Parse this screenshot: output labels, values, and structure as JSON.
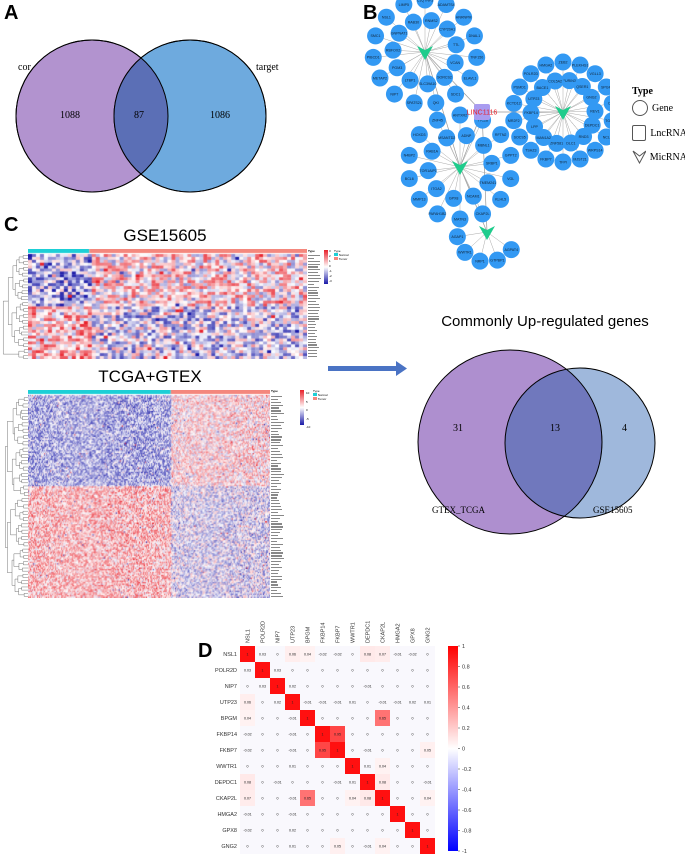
{
  "panels": {
    "a": "A",
    "b": "B",
    "c": "C",
    "d": "D"
  },
  "venn_a": {
    "left_label": "cor",
    "right_label": "target",
    "left_only": "1088",
    "overlap": "87",
    "right_only": "1086",
    "colors": {
      "left": "#b293cf",
      "right": "#6eaade",
      "overlap": "#5b6fb6"
    }
  },
  "network": {
    "lncrna": "LINC1116",
    "legend": {
      "title": "Type",
      "gene": "Gene",
      "lncrna": "LncRNA",
      "mirna": "MicRNA"
    },
    "colors": {
      "gene": "#3399f3",
      "mirna": "#1fcc8c",
      "lncrna": "#a99cf0",
      "lncrna_text": "#e8202a"
    },
    "hubs": [
      {
        "genes": [
          "C1QTNF3",
          "ADAMTS4",
          "HNRNPM",
          "DNAL1",
          "TNF150",
          "ELAVL1",
          "SDC1",
          "QKI",
          "SPATS2L",
          "NIP7",
          "METAP2",
          "PIBCD1",
          "SMC1",
          "NSL1",
          "LIMP5",
          "RNMS2",
          "CYP20A1",
          "TTL",
          "VCAN",
          "SORCS2",
          "SLC39A10",
          "LTBP1",
          "PGM3",
          "RBFOX2",
          "GNPNAT1",
          "RAB30"
        ]
      },
      {
        "genes": [
          "ZEB2",
          "PLEKHG1",
          "VGLL3",
          "SPGM",
          "DHR",
          "TGFBR2",
          "NCL",
          "WRPS14",
          "MJST21",
          "TFPI",
          "FKBP7",
          "TSHZ3",
          "SOCS5",
          "MR2F2",
          "KCTD12",
          "PSMD1",
          "POLR2D",
          "HMGA2",
          "FURIN3",
          "QSER1",
          "GNG2",
          "REV1",
          "DEPDC1",
          "RND3",
          "DLC1",
          "ZNF581",
          "MAN1A2",
          "LPP",
          "FKBP14",
          "UTP23",
          "BACE1",
          "COL5A2"
        ]
      },
      {
        "genes": [
          "ANTXR2",
          "TTC28",
          "RFTN2",
          "GPPT2",
          "VGL",
          "KLHL5",
          "CKAP2L",
          "MATN3",
          "PAFAH1B2",
          "MMP13",
          "BCL6",
          "N4BP2",
          "HOXD3",
          "ZNF45",
          "ADNP",
          "MBNL1",
          "SRBP1",
          "TMEM241",
          "NCAM1",
          "GPX8",
          "ITGA2",
          "TOR1AIP1",
          "RAB1A",
          "MSANTD2"
        ]
      },
      {
        "genes": [
          "AGPAT4",
          "GTPBP1",
          "NRP1",
          "WWTR1",
          "AGAP1"
        ]
      }
    ]
  },
  "heatmap_gse": {
    "title": "GSE15605",
    "type_label": "Type",
    "legend_title": "Type",
    "normal": "Normal",
    "tumor": "Tumor",
    "ticks": [
      "3",
      "2",
      "1",
      "0",
      "-1",
      "-2",
      "-3"
    ],
    "normal_color": "#1dcfd6",
    "tumor_color": "#f4877d"
  },
  "heatmap_tcga": {
    "title": "TCGA+GTEX",
    "type_label": "Type",
    "legend_title": "Type",
    "normal": "Normal",
    "tumor": "Tumor",
    "ticks": [
      "10",
      "5",
      "0",
      "-5",
      "-10"
    ]
  },
  "venn_c": {
    "title": "Commonly Up-regulated genes",
    "left_only": "31",
    "overlap": "13",
    "right_only": "4",
    "left_label": "GTEX_TCGA",
    "right_label": "GSE15605",
    "colors": {
      "left": "#ae8fcf",
      "right": "#9fb8dc",
      "overlap": "#7078bd"
    }
  },
  "correlation": {
    "genes": [
      "NSL1",
      "POLR2D",
      "NIP7",
      "UTP23",
      "BPGM",
      "FKBP14",
      "FKBP7",
      "WWTR1",
      "DEPDC1",
      "CKAP2L",
      "HMGA2",
      "GPX8",
      "GNG2"
    ],
    "matrix": [
      [
        1,
        0.03,
        0,
        0.06,
        0.04,
        -0.02,
        -0.02,
        0,
        0.08,
        0.07,
        -0.01,
        -0.02,
        0
      ],
      [
        0.03,
        1,
        0.03,
        0,
        0,
        0,
        0,
        0,
        0,
        0,
        0,
        0,
        0
      ],
      [
        0,
        0.03,
        1,
        0.02,
        0,
        0,
        0,
        0,
        -0.01,
        0,
        0,
        0,
        0
      ],
      [
        0.06,
        0,
        0.02,
        1,
        -0.01,
        -0.01,
        -0.01,
        0.01,
        0,
        -0.01,
        -0.01,
        0.02,
        0.01
      ],
      [
        0.04,
        0,
        0,
        -0.01,
        1,
        0,
        0,
        0,
        0,
        0.65,
        0,
        0,
        0
      ],
      [
        -0.02,
        0,
        0,
        -0.01,
        0,
        1,
        0.95,
        0,
        0,
        0,
        0,
        0,
        0
      ],
      [
        -0.02,
        0,
        0,
        -0.01,
        0,
        0.95,
        1,
        0,
        -0.01,
        0,
        0,
        0,
        0.05
      ],
      [
        0,
        0,
        0,
        0.01,
        0,
        0,
        0,
        1,
        0.01,
        0.04,
        0,
        0,
        0
      ],
      [
        0.08,
        0,
        -0.01,
        0,
        0,
        0,
        -0.01,
        0.01,
        1,
        0.08,
        0,
        0,
        -0.01
      ],
      [
        0.07,
        0,
        0,
        -0.01,
        0.65,
        0,
        0,
        0.04,
        0.08,
        1,
        0,
        0,
        0.04
      ],
      [
        -0.01,
        0,
        0,
        -0.01,
        0,
        0,
        0,
        0,
        0,
        0,
        1,
        0,
        0
      ],
      [
        -0.02,
        0,
        0,
        0.02,
        0,
        0,
        0,
        0,
        0,
        0,
        0,
        1,
        0
      ],
      [
        0,
        0,
        0,
        0.01,
        0,
        0,
        0.05,
        0,
        -0.01,
        0.04,
        0,
        0,
        1
      ]
    ],
    "colorbar_ticks": [
      "1",
      "0.8",
      "0.6",
      "0.4",
      "0.2",
      "0",
      "-0.2",
      "-0.4",
      "-0.6",
      "-0.8",
      "-1"
    ]
  }
}
